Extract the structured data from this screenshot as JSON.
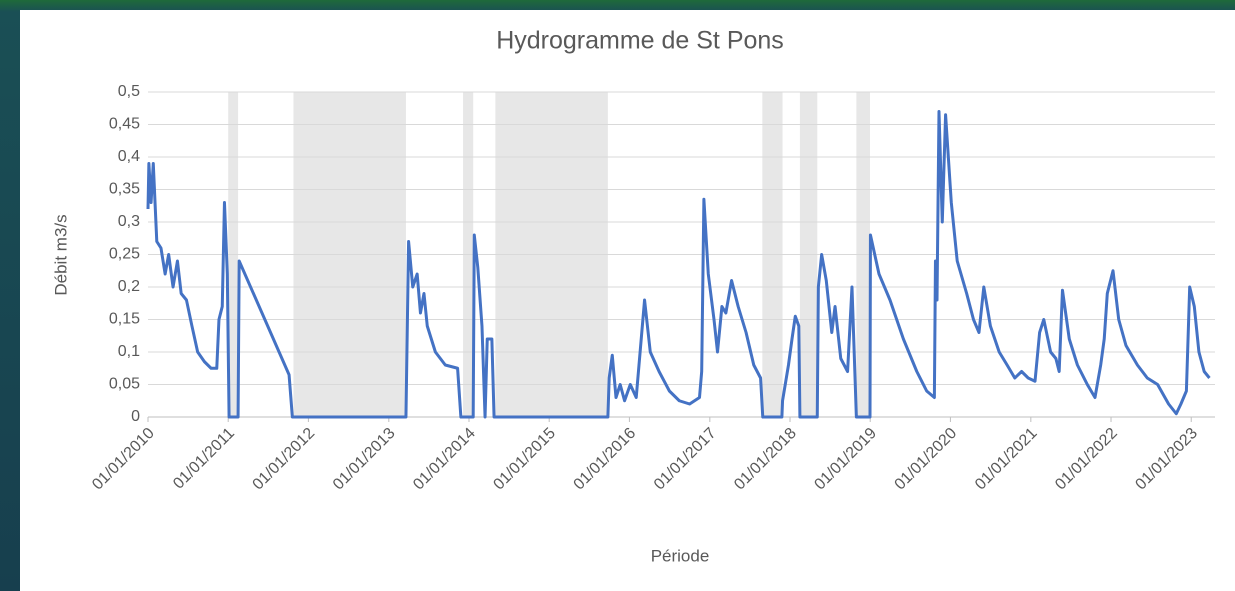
{
  "chart_data": {
    "type": "line",
    "title": "Hydrogramme de St Pons",
    "x_label": "Période",
    "y_label": "Débit m3/s",
    "color": "#4472c4",
    "band_color": "#e7e7e7",
    "grid": true,
    "xlim": [
      "2010-01-01",
      "2023-04-01"
    ],
    "xticks": [
      {
        "value": "2010-01-01",
        "label": "01/01/2010"
      },
      {
        "value": "2011-01-01",
        "label": "01/01/2011"
      },
      {
        "value": "2012-01-01",
        "label": "01/01/2012"
      },
      {
        "value": "2013-01-01",
        "label": "01/01/2013"
      },
      {
        "value": "2014-01-01",
        "label": "01/01/2014"
      },
      {
        "value": "2015-01-01",
        "label": "01/01/2015"
      },
      {
        "value": "2016-01-01",
        "label": "01/01/2016"
      },
      {
        "value": "2017-01-01",
        "label": "01/01/2017"
      },
      {
        "value": "2018-01-01",
        "label": "01/01/2018"
      },
      {
        "value": "2019-01-01",
        "label": "01/01/2019"
      },
      {
        "value": "2020-01-01",
        "label": "01/01/2020"
      },
      {
        "value": "2021-01-01",
        "label": "01/01/2021"
      },
      {
        "value": "2022-01-01",
        "label": "01/01/2022"
      },
      {
        "value": "2023-01-01",
        "label": "01/01/2023"
      }
    ],
    "ylim": [
      0,
      0.5
    ],
    "yticks": [
      0,
      {
        "value": 0.05,
        "label": "0,05"
      },
      {
        "value": 0.1,
        "label": "0,1"
      },
      {
        "value": 0.15,
        "label": "0,15"
      },
      {
        "value": 0.2,
        "label": "0,2"
      },
      {
        "value": 0.25,
        "label": "0,25"
      },
      {
        "value": 0.3,
        "label": "0,3"
      },
      {
        "value": 0.35,
        "label": "0,35"
      },
      {
        "value": 0.4,
        "label": "0,4"
      },
      {
        "value": 0.45,
        "label": "0,45"
      },
      {
        "value": 0.5,
        "label": "0,5"
      }
    ],
    "shaded_periods": [
      [
        "2011-01-01",
        "2011-02-15"
      ],
      [
        "2011-10-25",
        "2013-03-20"
      ],
      [
        "2013-12-05",
        "2014-01-20"
      ],
      [
        "2014-05-01",
        "2015-09-25"
      ],
      [
        "2017-08-28",
        "2017-11-28"
      ],
      [
        "2018-02-15",
        "2018-05-05"
      ],
      [
        "2018-10-30",
        "2018-12-31"
      ]
    ],
    "x": [
      "2010-01-01",
      "2010-01-05",
      "2010-01-15",
      "2010-01-25",
      "2010-02-10",
      "2010-03-01",
      "2010-03-20",
      "2010-04-05",
      "2010-04-25",
      "2010-05-15",
      "2010-06-01",
      "2010-06-25",
      "2010-07-20",
      "2010-08-15",
      "2010-09-15",
      "2010-10-15",
      "2010-11-10",
      "2010-11-20",
      "2010-12-05",
      "2010-12-15",
      "2010-12-28",
      "2011-01-05",
      "2011-02-15",
      "2011-02-20",
      "2011-10-05",
      "2011-10-20",
      "2013-03-20",
      "2013-04-01",
      "2013-04-20",
      "2013-05-10",
      "2013-05-25",
      "2013-06-10",
      "2013-06-25",
      "2013-08-01",
      "2013-09-15",
      "2013-11-10",
      "2013-11-25",
      "2014-01-20",
      "2014-01-25",
      "2014-02-10",
      "2014-03-01",
      "2014-03-15",
      "2014-03-25",
      "2014-04-15",
      "2014-04-25",
      "2015-09-25",
      "2015-10-01",
      "2015-10-15",
      "2015-11-01",
      "2015-11-20",
      "2015-12-10",
      "2016-01-05",
      "2016-02-01",
      "2016-03-10",
      "2016-04-05",
      "2016-05-15",
      "2016-07-01",
      "2016-08-15",
      "2016-10-01",
      "2016-11-15",
      "2016-11-25",
      "2016-12-05",
      "2016-12-25",
      "2017-01-20",
      "2017-02-05",
      "2017-02-25",
      "2017-03-15",
      "2017-04-10",
      "2017-05-10",
      "2017-06-15",
      "2017-07-20",
      "2017-08-20",
      "2017-08-30",
      "2017-11-25",
      "2017-11-28",
      "2017-12-25",
      "2018-01-10",
      "2018-01-25",
      "2018-02-10",
      "2018-02-15",
      "2018-05-05",
      "2018-05-10",
      "2018-05-25",
      "2018-06-15",
      "2018-07-10",
      "2018-07-25",
      "2018-08-20",
      "2018-09-20",
      "2018-10-10",
      "2018-10-30",
      "2018-12-31",
      "2019-01-02",
      "2019-02-10",
      "2019-04-01",
      "2019-06-01",
      "2019-08-01",
      "2019-09-15",
      "2019-10-20",
      "2019-10-25",
      "2019-11-01",
      "2019-11-10",
      "2019-11-25",
      "2019-12-10",
      "2020-01-05",
      "2020-02-01",
      "2020-03-15",
      "2020-04-15",
      "2020-05-10",
      "2020-06-01",
      "2020-07-01",
      "2020-08-10",
      "2020-09-15",
      "2020-10-20",
      "2020-11-20",
      "2020-12-20",
      "2021-01-20",
      "2021-02-10",
      "2021-03-01",
      "2021-04-01",
      "2021-04-25",
      "2021-05-10",
      "2021-05-25",
      "2021-06-25",
      "2021-08-01",
      "2021-09-15",
      "2021-10-20",
      "2021-11-15",
      "2021-12-01",
      "2021-12-15",
      "2022-01-10",
      "2022-02-05",
      "2022-03-10",
      "2022-05-01",
      "2022-06-15",
      "2022-08-01",
      "2022-09-20",
      "2022-10-25",
      "2022-11-15",
      "2022-12-10",
      "2022-12-25",
      "2023-01-15",
      "2023-02-05",
      "2023-03-01",
      "2023-03-25"
    ],
    "values": [
      0.32,
      0.39,
      0.33,
      0.39,
      0.27,
      0.26,
      0.22,
      0.25,
      0.2,
      0.24,
      0.19,
      0.18,
      0.14,
      0.1,
      0.085,
      0.075,
      0.075,
      0.15,
      0.17,
      0.33,
      0.22,
      0,
      0,
      0.24,
      0.065,
      0,
      0,
      0.27,
      0.2,
      0.22,
      0.16,
      0.19,
      0.14,
      0.1,
      0.08,
      0.075,
      0,
      0,
      0.28,
      0.23,
      0.14,
      0,
      0.12,
      0.12,
      0,
      0,
      0.06,
      0.095,
      0.03,
      0.05,
      0.025,
      0.05,
      0.03,
      0.18,
      0.1,
      0.07,
      0.04,
      0.025,
      0.02,
      0.03,
      0.07,
      0.335,
      0.22,
      0.15,
      0.1,
      0.17,
      0.16,
      0.21,
      0.17,
      0.13,
      0.08,
      0.06,
      0,
      0,
      0.025,
      0.08,
      0.12,
      0.155,
      0.14,
      0,
      0,
      0.2,
      0.25,
      0.21,
      0.13,
      0.17,
      0.09,
      0.07,
      0.2,
      0,
      0,
      0.28,
      0.22,
      0.18,
      0.12,
      0.07,
      0.04,
      0.03,
      0.24,
      0.18,
      0.47,
      0.3,
      0.465,
      0.33,
      0.24,
      0.19,
      0.15,
      0.13,
      0.2,
      0.14,
      0.1,
      0.08,
      0.06,
      0.07,
      0.06,
      0.055,
      0.13,
      0.15,
      0.1,
      0.09,
      0.07,
      0.195,
      0.12,
      0.08,
      0.05,
      0.03,
      0.08,
      0.12,
      0.19,
      0.225,
      0.15,
      0.11,
      0.08,
      0.06,
      0.05,
      0.02,
      0.005,
      0.02,
      0.04,
      0.2,
      0.17,
      0.1,
      0.07,
      0.06
    ]
  }
}
